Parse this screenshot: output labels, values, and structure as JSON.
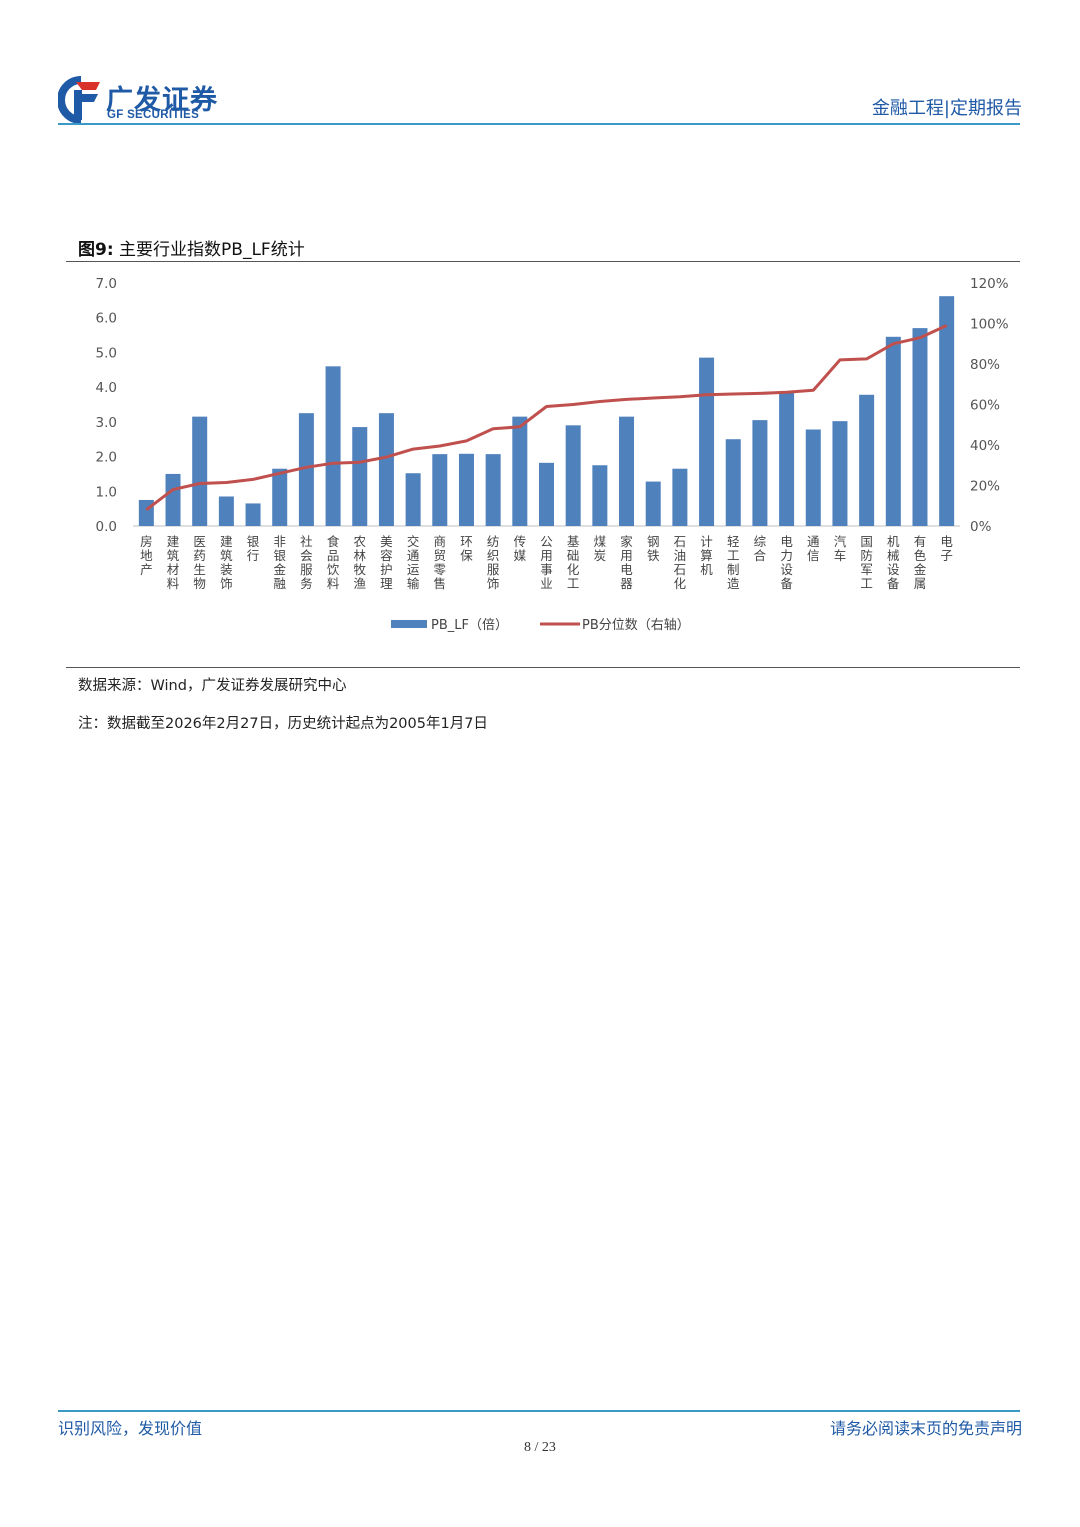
{
  "header": {
    "logo_cn": "广发证券",
    "logo_en": "GF SECURITIES",
    "doc_type": "金融工程|定期报告",
    "colors": {
      "brand_blue": "#1f5aa6",
      "brand_red": "#d9322b",
      "rule": "#3a99c7"
    }
  },
  "figure": {
    "label": "图9:",
    "title": "主要行业指数PB_LF统计"
  },
  "chart_data": {
    "type": "bar",
    "categories": [
      "房地产",
      "建筑材料",
      "医药生物",
      "建筑装饰",
      "银行",
      "非银金融",
      "社会服务",
      "食品饮料",
      "农林牧渔",
      "美容护理",
      "交通运输",
      "商贸零售",
      "环保",
      "纺织服饰",
      "传媒",
      "公用事业",
      "基础化工",
      "煤炭",
      "家用电器",
      "钢铁",
      "石油石化",
      "计算机",
      "轻工制造",
      "综合",
      "电力设备",
      "通信",
      "汽车",
      "国防军工",
      "机械设备",
      "有色金属",
      "电子"
    ],
    "series": [
      {
        "name": "PB_LF（倍）",
        "type": "bar",
        "axis": "left",
        "color": "#4f81bd",
        "values": [
          0.75,
          1.5,
          3.15,
          0.85,
          0.65,
          1.65,
          3.25,
          4.6,
          2.85,
          3.25,
          1.52,
          2.07,
          2.08,
          2.07,
          3.15,
          1.82,
          2.9,
          1.75,
          3.15,
          1.28,
          1.65,
          4.85,
          2.5,
          3.05,
          3.85,
          2.78,
          3.02,
          3.78,
          5.45,
          5.7,
          6.62
        ]
      },
      {
        "name": "PB分位数（右轴）",
        "type": "line",
        "axis": "right",
        "color": "#c0504d",
        "values": [
          0.08,
          0.18,
          0.21,
          0.215,
          0.23,
          0.26,
          0.29,
          0.31,
          0.315,
          0.34,
          0.38,
          0.395,
          0.42,
          0.48,
          0.49,
          0.59,
          0.6,
          0.615,
          0.625,
          0.632,
          0.638,
          0.648,
          0.652,
          0.655,
          0.66,
          0.67,
          0.82,
          0.825,
          0.9,
          0.93,
          0.99
        ]
      }
    ],
    "y_left": {
      "min": 0,
      "max": 7,
      "ticks": [
        "0.0",
        "1.0",
        "2.0",
        "3.0",
        "4.0",
        "5.0",
        "6.0",
        "7.0"
      ]
    },
    "y_right": {
      "min": 0,
      "max": 1.2,
      "ticks": [
        "0%",
        "20%",
        "40%",
        "60%",
        "80%",
        "100%",
        "120%"
      ]
    },
    "grid": false,
    "legend_position": "bottom-center"
  },
  "notes": {
    "source": "数据来源：Wind，广发证券发展研究中心",
    "remark": "注：数据截至2026年2月27日，历史统计起点为2005年1月7日"
  },
  "footer": {
    "left": "识别风险，发现价值",
    "right": "请务必阅读末页的免责声明",
    "page": "8 / 23"
  }
}
